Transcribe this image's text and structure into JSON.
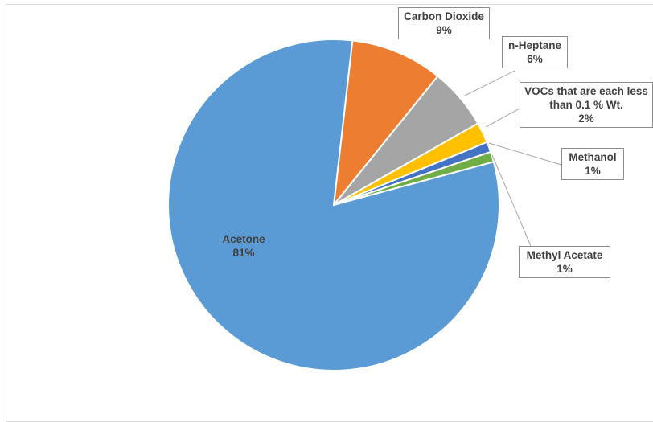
{
  "chart_data": {
    "type": "pie",
    "slices": [
      {
        "label": "Acetone",
        "value": 81,
        "value_label": "81%",
        "color": "#5b9bd5"
      },
      {
        "label": "Carbon Dioxide",
        "value": 9,
        "value_label": "9%",
        "color": "#ed7d31"
      },
      {
        "label": "n-Heptane",
        "value": 6,
        "value_label": "6%",
        "color": "#a5a5a5"
      },
      {
        "label": "VOCs that are each less than 0.1 % Wt.",
        "value": 2,
        "value_label": "2%",
        "color": "#ffc000"
      },
      {
        "label": "Methanol",
        "value": 1,
        "value_label": "1%",
        "color": "#4472c4"
      },
      {
        "label": "Methyl Acetate",
        "value": 1,
        "value_label": "1%",
        "color": "#70ad47"
      }
    ],
    "title": "",
    "legend": "none",
    "data_labels": "callouts"
  }
}
